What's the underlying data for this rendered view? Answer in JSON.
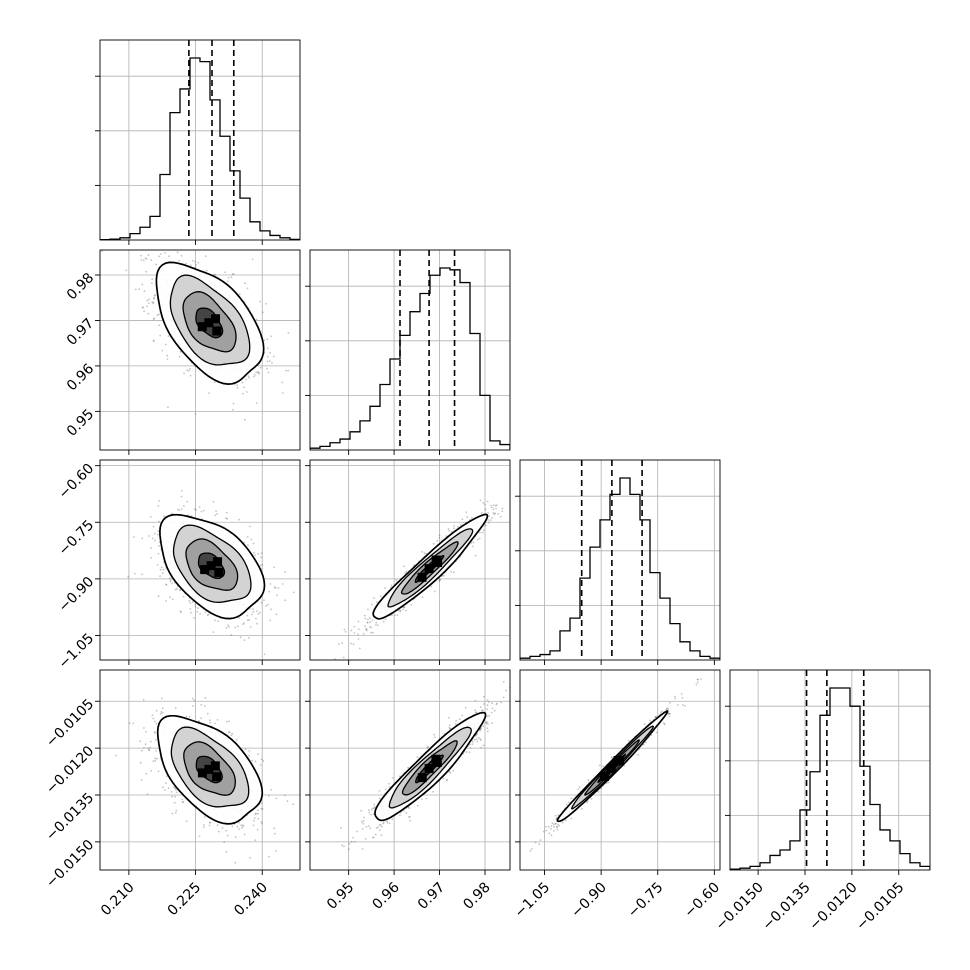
{
  "chart_data": {
    "type": "corner",
    "parameters": [
      {
        "ticks": [
          0.21,
          0.225,
          0.24
        ],
        "tick_labels": [
          "0.210",
          "0.225",
          "0.240"
        ],
        "lim": [
          0.2035,
          0.2485
        ]
      },
      {
        "ticks": [
          0.95,
          0.96,
          0.97,
          0.98
        ],
        "tick_labels": [
          "0.95",
          "0.96",
          "0.97",
          "0.98"
        ],
        "lim": [
          0.9415,
          0.9855
        ]
      },
      {
        "ticks": [
          -1.05,
          -0.9,
          -0.75,
          -0.6
        ],
        "tick_labels": [
          "−1.05",
          "−0.90",
          "−0.75",
          "−0.60"
        ],
        "lim": [
          -1.115,
          -0.585
        ]
      },
      {
        "ticks": [
          -0.015,
          -0.0135,
          -0.012,
          -0.0105
        ],
        "tick_labels": [
          "−0.0150",
          "−0.0135",
          "−0.0120",
          "−0.0105"
        ],
        "lim": [
          -0.0159,
          -0.0095
        ]
      }
    ],
    "quantiles": [
      [
        0.2235,
        0.2287,
        0.2336
      ],
      [
        0.9613,
        0.9677,
        0.9733
      ],
      [
        -0.9515,
        -0.8715,
        -0.7915
      ],
      [
        -0.01345,
        -0.0128,
        -0.01162
      ]
    ],
    "histograms": [
      [
        0.002,
        0.005,
        0.012,
        0.035,
        0.07,
        0.13,
        0.36,
        0.7,
        0.83,
        1.0,
        0.98,
        0.77,
        0.57,
        0.38,
        0.23,
        0.1,
        0.05,
        0.025,
        0.012,
        0.003
      ],
      [
        0.01,
        0.02,
        0.04,
        0.06,
        0.1,
        0.16,
        0.24,
        0.36,
        0.5,
        0.63,
        0.76,
        0.86,
        0.96,
        1.0,
        0.99,
        0.92,
        0.64,
        0.3,
        0.05,
        0.03
      ],
      [
        0.01,
        0.02,
        0.03,
        0.05,
        0.16,
        0.23,
        0.45,
        0.62,
        0.77,
        0.91,
        1.0,
        0.91,
        0.77,
        0.48,
        0.34,
        0.2,
        0.1,
        0.05,
        0.02,
        0.01
      ],
      [
        0.005,
        0.01,
        0.02,
        0.04,
        0.08,
        0.11,
        0.16,
        0.33,
        0.54,
        0.85,
        1.0,
        1.0,
        0.9,
        0.57,
        0.36,
        0.22,
        0.16,
        0.09,
        0.04,
        0.02
      ]
    ],
    "pairs": [
      {
        "row": 1,
        "col": 0,
        "center": [
          0.228,
          0.9695
        ],
        "sx": 0.00595,
        "sy": 0.0065,
        "rho": -0.5
      },
      {
        "row": 2,
        "col": 0,
        "center": [
          0.2285,
          -0.865
        ],
        "sx": 0.0058,
        "sy": 0.067,
        "rho": -0.45
      },
      {
        "row": 2,
        "col": 1,
        "center": [
          0.9677,
          -0.873
        ],
        "sx": 0.0062,
        "sy": 0.069,
        "rho": 0.95
      },
      {
        "row": 3,
        "col": 0,
        "center": [
          0.228,
          -0.01268
        ],
        "sx": 0.0058,
        "sy": 0.00084,
        "rho": -0.5
      },
      {
        "row": 3,
        "col": 1,
        "center": [
          0.9677,
          -0.01265
        ],
        "sx": 0.006,
        "sy": 0.00086,
        "rho": 0.93
      },
      {
        "row": 3,
        "col": 2,
        "center": [
          -0.873,
          -0.01265
        ],
        "sx": 0.072,
        "sy": 0.00088,
        "rho": 0.99
      }
    ],
    "grid": true,
    "colors": {
      "line": "#000000",
      "grid": "#b0b0b0",
      "points": "#555555",
      "fill": "#222222"
    }
  }
}
